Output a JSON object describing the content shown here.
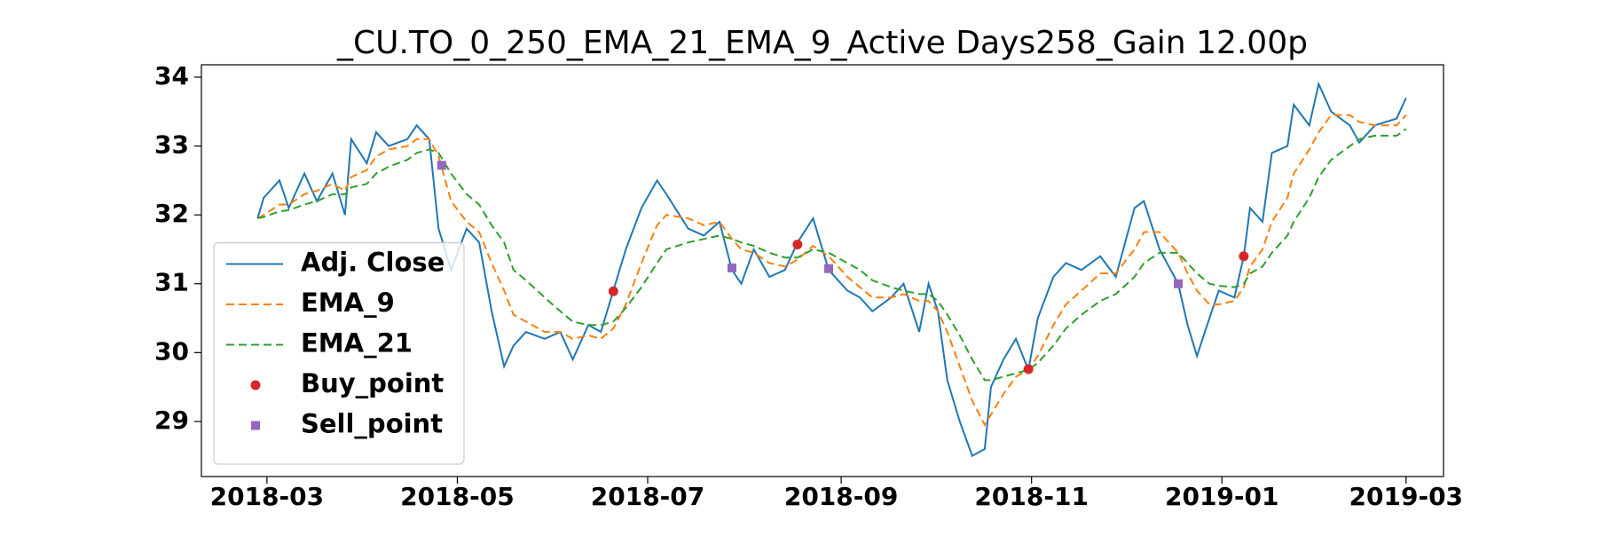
{
  "chart_data": {
    "type": "line",
    "title": "_CU.TO_0_250_EMA_21_EMA_9_Active Days258_Gain  12.00p",
    "x": [
      "2018-02-26",
      "2018-02-28",
      "2018-03-05",
      "2018-03-08",
      "2018-03-13",
      "2018-03-17",
      "2018-03-22",
      "2018-03-26",
      "2018-03-28",
      "2018-04-02",
      "2018-04-05",
      "2018-04-09",
      "2018-04-15",
      "2018-04-18",
      "2018-04-22",
      "2018-04-25",
      "2018-04-29",
      "2018-05-04",
      "2018-05-08",
      "2018-05-12",
      "2018-05-16",
      "2018-05-19",
      "2018-05-23",
      "2018-05-29",
      "2018-06-03",
      "2018-06-07",
      "2018-06-12",
      "2018-06-16",
      "2018-06-20",
      "2018-06-24",
      "2018-06-29",
      "2018-07-04",
      "2018-07-07",
      "2018-07-14",
      "2018-07-19",
      "2018-07-24",
      "2018-07-28",
      "2018-07-31",
      "2018-08-04",
      "2018-08-09",
      "2018-08-14",
      "2018-08-18",
      "2018-08-23",
      "2018-08-28",
      "2018-09-03",
      "2018-09-07",
      "2018-09-11",
      "2018-09-17",
      "2018-09-21",
      "2018-09-26",
      "2018-09-29",
      "2018-10-02",
      "2018-10-05",
      "2018-10-09",
      "2018-10-13",
      "2018-10-17",
      "2018-10-19",
      "2018-10-23",
      "2018-10-27",
      "2018-10-31",
      "2018-11-03",
      "2018-11-08",
      "2018-11-12",
      "2018-11-17",
      "2018-11-23",
      "2018-11-28",
      "2018-12-04",
      "2018-12-07",
      "2018-12-12",
      "2018-12-18",
      "2018-12-21",
      "2018-12-24",
      "2018-12-28",
      "2018-12-31",
      "2019-01-05",
      "2019-01-08",
      "2019-01-10",
      "2019-01-14",
      "2019-01-17",
      "2019-01-22",
      "2019-01-24",
      "2019-01-29",
      "2019-02-01",
      "2019-02-05",
      "2019-02-11",
      "2019-02-14",
      "2019-02-19",
      "2019-02-26",
      "2019-03-01"
    ],
    "xlim": [
      "2018-02-08",
      "2019-03-13"
    ],
    "xticks": [
      "2018-03",
      "2018-05",
      "2018-07",
      "2018-09",
      "2018-11",
      "2019-01",
      "2019-03"
    ],
    "ylim": [
      28.2,
      34.18
    ],
    "yticks": [
      29,
      30,
      31,
      32,
      33,
      34
    ],
    "legend": "lower left",
    "series": [
      {
        "name": "Adj. Close",
        "color": "#1f77b4",
        "linestyle": "solid",
        "values": [
          31.95,
          32.25,
          32.5,
          32.1,
          32.6,
          32.2,
          32.6,
          32.0,
          33.1,
          32.75,
          33.2,
          33.0,
          33.1,
          33.3,
          33.1,
          31.8,
          31.2,
          31.8,
          31.6,
          30.6,
          29.8,
          30.1,
          30.3,
          30.2,
          30.3,
          29.9,
          30.4,
          30.3,
          30.9,
          31.5,
          32.1,
          32.5,
          32.3,
          31.8,
          31.7,
          31.9,
          31.2,
          31.0,
          31.5,
          31.1,
          31.2,
          31.6,
          31.95,
          31.2,
          30.9,
          30.8,
          30.6,
          30.8,
          31.0,
          30.3,
          31.0,
          30.6,
          29.6,
          29.0,
          28.5,
          28.6,
          29.5,
          29.9,
          30.2,
          29.75,
          30.5,
          31.1,
          31.3,
          31.2,
          31.4,
          31.1,
          32.1,
          32.2,
          31.5,
          31.0,
          30.4,
          29.95,
          30.5,
          30.9,
          30.8,
          31.4,
          32.1,
          31.9,
          32.9,
          33.0,
          33.6,
          33.3,
          33.9,
          33.5,
          33.3,
          33.05,
          33.3,
          33.4,
          33.7
        ]
      },
      {
        "name": "EMA_9",
        "color": "#ff7f0e",
        "linestyle": "dashed",
        "values": [
          31.95,
          32.0,
          32.15,
          32.15,
          32.3,
          32.35,
          32.45,
          32.35,
          32.55,
          32.65,
          32.85,
          32.95,
          33.0,
          33.1,
          33.1,
          32.85,
          32.2,
          31.9,
          31.75,
          31.3,
          30.9,
          30.55,
          30.45,
          30.3,
          30.3,
          30.2,
          30.25,
          30.2,
          30.35,
          30.7,
          31.3,
          31.85,
          32.0,
          31.95,
          31.85,
          31.9,
          31.65,
          31.5,
          31.45,
          31.3,
          31.25,
          31.35,
          31.55,
          31.4,
          31.1,
          30.95,
          30.8,
          30.8,
          30.85,
          30.75,
          30.75,
          30.6,
          30.3,
          29.8,
          29.3,
          28.95,
          29.1,
          29.4,
          29.65,
          29.75,
          29.95,
          30.4,
          30.7,
          30.9,
          31.15,
          31.15,
          31.5,
          31.75,
          31.75,
          31.45,
          31.15,
          30.9,
          30.7,
          30.7,
          30.75,
          30.95,
          31.25,
          31.5,
          31.9,
          32.25,
          32.6,
          32.95,
          33.2,
          33.45,
          33.45,
          33.35,
          33.3,
          33.3,
          33.45
        ]
      },
      {
        "name": "EMA_21",
        "color": "#2ca02c",
        "linestyle": "dashed",
        "values": [
          31.95,
          31.97,
          32.05,
          32.07,
          32.15,
          32.2,
          32.3,
          32.3,
          32.4,
          32.45,
          32.6,
          32.7,
          32.8,
          32.9,
          32.95,
          32.9,
          32.6,
          32.3,
          32.15,
          31.85,
          31.6,
          31.2,
          31.05,
          30.8,
          30.6,
          30.45,
          30.4,
          30.4,
          30.45,
          30.65,
          30.95,
          31.3,
          31.5,
          31.6,
          31.65,
          31.7,
          31.65,
          31.6,
          31.55,
          31.45,
          31.38,
          31.38,
          31.5,
          31.45,
          31.3,
          31.2,
          31.05,
          30.95,
          30.9,
          30.85,
          30.85,
          30.75,
          30.55,
          30.25,
          29.9,
          29.6,
          29.6,
          29.65,
          29.7,
          29.75,
          29.85,
          30.1,
          30.35,
          30.55,
          30.75,
          30.85,
          31.1,
          31.3,
          31.45,
          31.45,
          31.3,
          31.15,
          31.0,
          30.97,
          30.95,
          31.0,
          31.15,
          31.25,
          31.45,
          31.7,
          31.9,
          32.25,
          32.55,
          32.8,
          33.0,
          33.1,
          33.15,
          33.15,
          33.25
        ]
      },
      {
        "name": "Buy_point",
        "color": "#d62728",
        "marker": "circle",
        "x": [
          "2018-06-20",
          "2018-08-18",
          "2018-10-31",
          "2019-01-08"
        ],
        "values": [
          30.89,
          31.57,
          29.76,
          31.4
        ]
      },
      {
        "name": "Sell_point",
        "color": "#9467bd",
        "marker": "square",
        "x": [
          "2018-04-26",
          "2018-07-28",
          "2018-08-28",
          "2018-12-18"
        ],
        "values": [
          32.72,
          31.23,
          31.22,
          31.0
        ]
      }
    ]
  }
}
